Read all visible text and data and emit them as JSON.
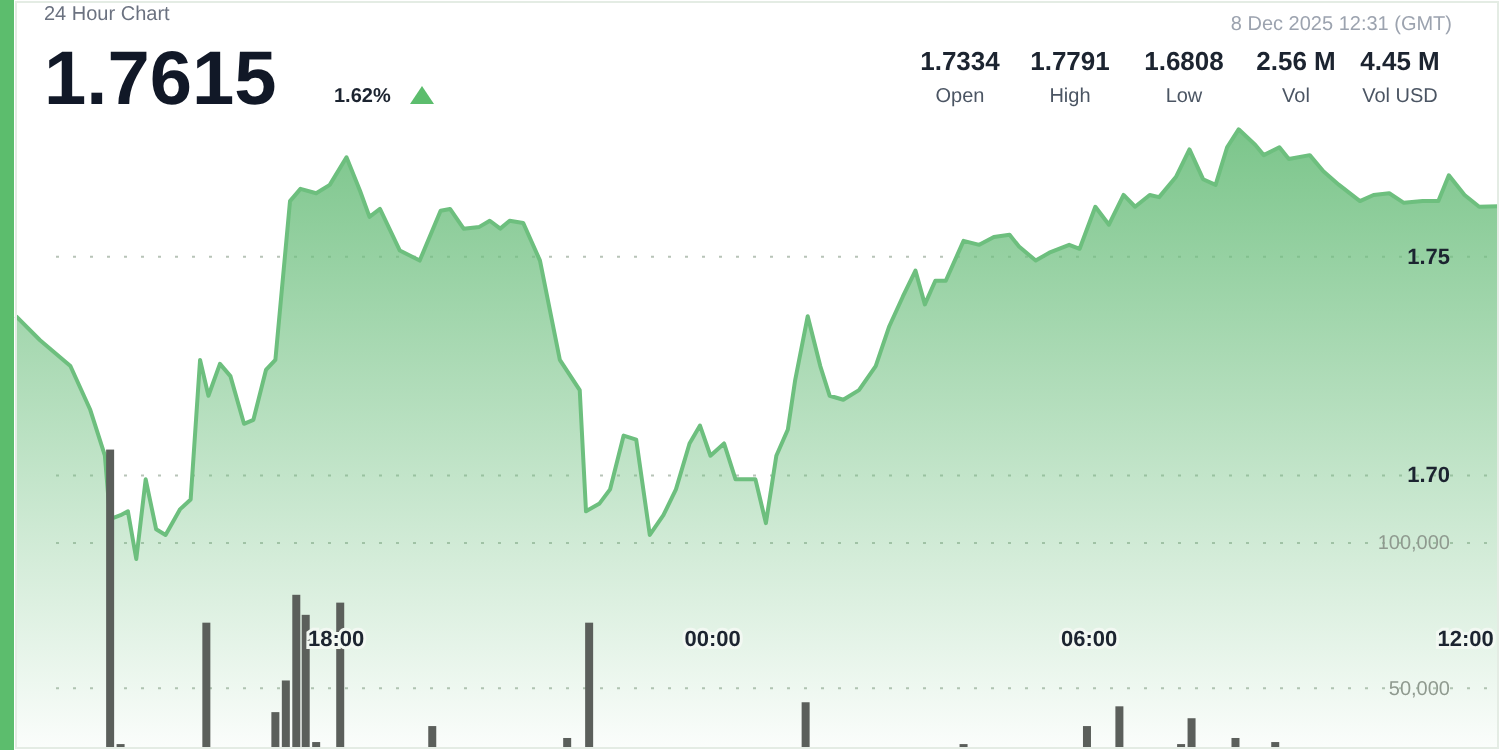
{
  "chart_data": {
    "type": "area",
    "title": "24 Hour Chart",
    "annotations": [
      "1.7615",
      "1.62%",
      "8 Dec 2025 12:31 (GMT)",
      "1.7334",
      "Open",
      "1.7791",
      "High",
      "1.6808",
      "Low",
      "2.56 M",
      "Vol",
      "4.45 M",
      "Vol USD"
    ],
    "xlim": [
      "2025-12-07T12:54",
      "2025-12-08T12:31"
    ],
    "xticks": [
      {
        "value": "2025-12-07T18:00",
        "label": "18:00"
      },
      {
        "value": "2025-12-08T00:00",
        "label": "00:00"
      },
      {
        "value": "2025-12-08T06:00",
        "label": "06:00"
      },
      {
        "value": "2025-12-08T12:00",
        "label": "12:00"
      }
    ],
    "ylim": [
      1.6377,
      1.8082
    ],
    "yticks": [
      {
        "value": 1.7,
        "label": "1.70"
      },
      1.75
    ],
    "y2lim": [
      29450,
      286300
    ],
    "y2ticks": [
      {
        "value": 50000,
        "label": "50,000"
      },
      {
        "value": 100000,
        "label": "100,000"
      }
    ],
    "grid": "y",
    "series": [
      {
        "color": "#6dbf7e",
        "x": [
          "2025-12-07T12:54",
          "2025-12-07T13:17",
          "2025-12-07T13:46",
          "2025-12-07T14:05",
          "2025-12-07T14:19",
          "2025-12-07T14:24",
          "2025-12-07T14:34",
          "2025-12-07T14:41",
          "2025-12-07T14:49",
          "2025-12-07T14:58",
          "2025-12-07T15:08",
          "2025-12-07T15:17",
          "2025-12-07T15:31",
          "2025-12-07T15:41",
          "2025-12-07T15:50",
          "2025-12-07T15:58",
          "2025-12-07T16:09",
          "2025-12-07T16:19",
          "2025-12-07T16:32",
          "2025-12-07T16:41",
          "2025-12-07T16:53",
          "2025-12-07T17:02",
          "2025-12-07T17:16",
          "2025-12-07T17:26",
          "2025-12-07T17:41",
          "2025-12-07T17:54",
          "2025-12-07T18:10",
          "2025-12-07T18:23",
          "2025-12-07T18:32",
          "2025-12-07T18:42",
          "2025-12-07T19:01",
          "2025-12-07T19:20",
          "2025-12-07T19:40",
          "2025-12-07T19:49",
          "2025-12-07T20:02",
          "2025-12-07T20:17",
          "2025-12-07T20:27",
          "2025-12-07T20:37",
          "2025-12-07T20:46",
          "2025-12-07T20:59",
          "2025-12-07T21:15",
          "2025-12-07T21:34",
          "2025-12-07T21:53",
          "2025-12-07T21:59",
          "2025-12-07T22:12",
          "2025-12-07T22:22",
          "2025-12-07T22:35",
          "2025-12-07T22:47",
          "2025-12-07T23:00",
          "2025-12-07T23:13",
          "2025-12-07T23:25",
          "2025-12-07T23:38",
          "2025-12-07T23:48",
          "2025-12-07T23:58",
          "2025-12-08T00:11",
          "2025-12-08T00:22",
          "2025-12-08T00:41",
          "2025-12-08T00:51",
          "2025-12-08T01:01",
          "2025-12-08T01:12",
          "2025-12-08T01:19",
          "2025-12-08T01:31",
          "2025-12-08T01:43",
          "2025-12-08T01:52",
          "2025-12-08T02:05",
          "2025-12-08T02:20",
          "2025-12-08T02:36",
          "2025-12-08T02:49",
          "2025-12-08T03:02",
          "2025-12-08T03:14",
          "2025-12-08T03:23",
          "2025-12-08T03:33",
          "2025-12-08T03:43",
          "2025-12-08T04:00",
          "2025-12-08T04:15",
          "2025-12-08T04:29",
          "2025-12-08T04:44",
          "2025-12-08T04:53",
          "2025-12-08T05:09",
          "2025-12-08T05:22",
          "2025-12-08T05:41",
          "2025-12-08T05:51",
          "2025-12-08T06:06",
          "2025-12-08T06:19",
          "2025-12-08T06:33",
          "2025-12-08T06:44",
          "2025-12-08T06:58",
          "2025-12-08T07:07",
          "2025-12-08T07:23",
          "2025-12-08T07:36",
          "2025-12-08T07:49",
          "2025-12-08T08:01",
          "2025-12-08T08:12",
          "2025-12-08T08:23",
          "2025-12-08T08:39",
          "2025-12-08T08:47",
          "2025-12-08T09:02",
          "2025-12-08T09:11",
          "2025-12-08T09:31",
          "2025-12-08T09:44",
          "2025-12-08T09:59",
          "2025-12-08T10:19",
          "2025-12-08T10:32",
          "2025-12-08T10:47",
          "2025-12-08T11:01",
          "2025-12-08T11:19",
          "2025-12-08T11:34",
          "2025-12-08T11:44",
          "2025-12-08T11:59",
          "2025-12-08T12:13",
          "2025-12-08T12:31"
        ],
        "values": [
          1.7364,
          1.7309,
          1.725,
          1.715,
          1.7045,
          1.69,
          1.6909,
          1.6918,
          1.6809,
          1.6991,
          1.6877,
          1.6864,
          1.6923,
          1.6945,
          1.7264,
          1.7182,
          1.7255,
          1.7227,
          1.7118,
          1.7127,
          1.7241,
          1.7264,
          1.7627,
          1.7655,
          1.7645,
          1.7664,
          1.7727,
          1.765,
          1.7591,
          1.7609,
          1.7514,
          1.7491,
          1.7605,
          1.7609,
          1.7564,
          1.7568,
          1.7582,
          1.7564,
          1.7582,
          1.7577,
          1.7491,
          1.7264,
          1.7195,
          1.6918,
          1.6936,
          1.6968,
          1.7091,
          1.7082,
          1.6864,
          1.6909,
          1.6968,
          1.7073,
          1.7114,
          1.7045,
          1.7073,
          1.6991,
          1.6991,
          1.6891,
          1.7045,
          1.7105,
          1.7218,
          1.7364,
          1.725,
          1.7182,
          1.7173,
          1.7195,
          1.725,
          1.7341,
          1.7409,
          1.7468,
          1.7391,
          1.7445,
          1.7445,
          1.7536,
          1.7527,
          1.7545,
          1.755,
          1.7523,
          1.7491,
          1.7509,
          1.7527,
          1.7518,
          1.7614,
          1.7573,
          1.7641,
          1.7614,
          1.7641,
          1.7636,
          1.7682,
          1.7745,
          1.7677,
          1.7664,
          1.775,
          1.7791,
          1.7755,
          1.7732,
          1.775,
          1.7723,
          1.7732,
          1.7695,
          1.7664,
          1.7627,
          1.7641,
          1.7645,
          1.7623,
          1.7627,
          1.7627,
          1.7686,
          1.7641,
          1.7614,
          1.7615
        ]
      },
      {
        "type": "bar",
        "axis": "y2",
        "color": "#5b5f5b",
        "x": [
          "2025-12-07T14:24",
          "2025-12-07T14:34",
          "2025-12-07T15:56",
          "2025-12-07T17:02",
          "2025-12-07T17:12",
          "2025-12-07T17:22",
          "2025-12-07T17:31",
          "2025-12-07T17:41",
          "2025-12-07T18:04",
          "2025-12-07T19:32",
          "2025-12-07T21:41",
          "2025-12-07T22:02",
          "2025-12-08T01:29",
          "2025-12-08T04:00",
          "2025-12-08T05:58",
          "2025-12-08T06:29",
          "2025-12-08T07:28",
          "2025-12-08T07:38",
          "2025-12-08T08:20",
          "2025-12-08T08:58"
        ],
        "values": [
          132200,
          30800,
          72600,
          41800,
          52700,
          82200,
          75300,
          31500,
          79500,
          37000,
          32900,
          72600,
          45200,
          30800,
          37000,
          43800,
          30800,
          39700,
          32900,
          31500
        ]
      }
    ]
  }
}
